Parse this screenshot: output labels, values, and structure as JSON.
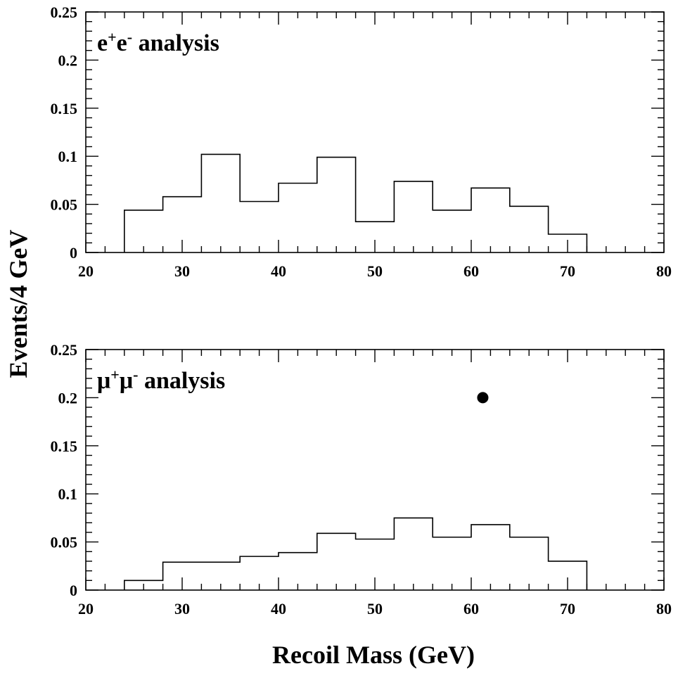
{
  "chart_data": [
    {
      "type": "histogram",
      "label_main": "e",
      "label_sup1": "+",
      "label_mid": "e",
      "label_sup2": "-",
      "label_rest": " analysis",
      "xlim": [
        20,
        80
      ],
      "ylim": [
        0,
        0.25
      ],
      "x_ticks": [
        "20",
        "30",
        "40",
        "50",
        "60",
        "70",
        "80"
      ],
      "y_ticks": [
        "0",
        "0.05",
        "0.1",
        "0.15",
        "0.2",
        "0.25"
      ],
      "bin_edges": [
        24,
        28,
        32,
        36,
        40,
        44,
        48,
        52,
        56,
        60,
        64,
        68,
        72
      ],
      "values": [
        0.044,
        0.058,
        0.102,
        0.053,
        0.072,
        0.099,
        0.032,
        0.074,
        0.044,
        0.067,
        0.048,
        0.019
      ],
      "points": []
    },
    {
      "type": "histogram",
      "label_main": "μ",
      "label_sup1": "+",
      "label_mid": "μ",
      "label_sup2": "-",
      "label_rest": " analysis",
      "xlim": [
        20,
        80
      ],
      "ylim": [
        0,
        0.25
      ],
      "x_ticks": [
        "20",
        "30",
        "40",
        "50",
        "60",
        "70",
        "80"
      ],
      "y_ticks": [
        "0",
        "0.05",
        "0.1",
        "0.15",
        "0.2",
        "0.25"
      ],
      "bin_edges": [
        24,
        28,
        32,
        36,
        40,
        44,
        48,
        52,
        56,
        60,
        64,
        68,
        72
      ],
      "values": [
        0.01,
        0.029,
        0.029,
        0.035,
        0.039,
        0.059,
        0.053,
        0.075,
        0.055,
        0.068,
        0.055,
        0.03
      ],
      "points": [
        {
          "x": 61.2,
          "y": 0.2
        }
      ]
    }
  ],
  "ylabel": "Events/4 GeV",
  "xlabel": "Recoil Mass (GeV)"
}
